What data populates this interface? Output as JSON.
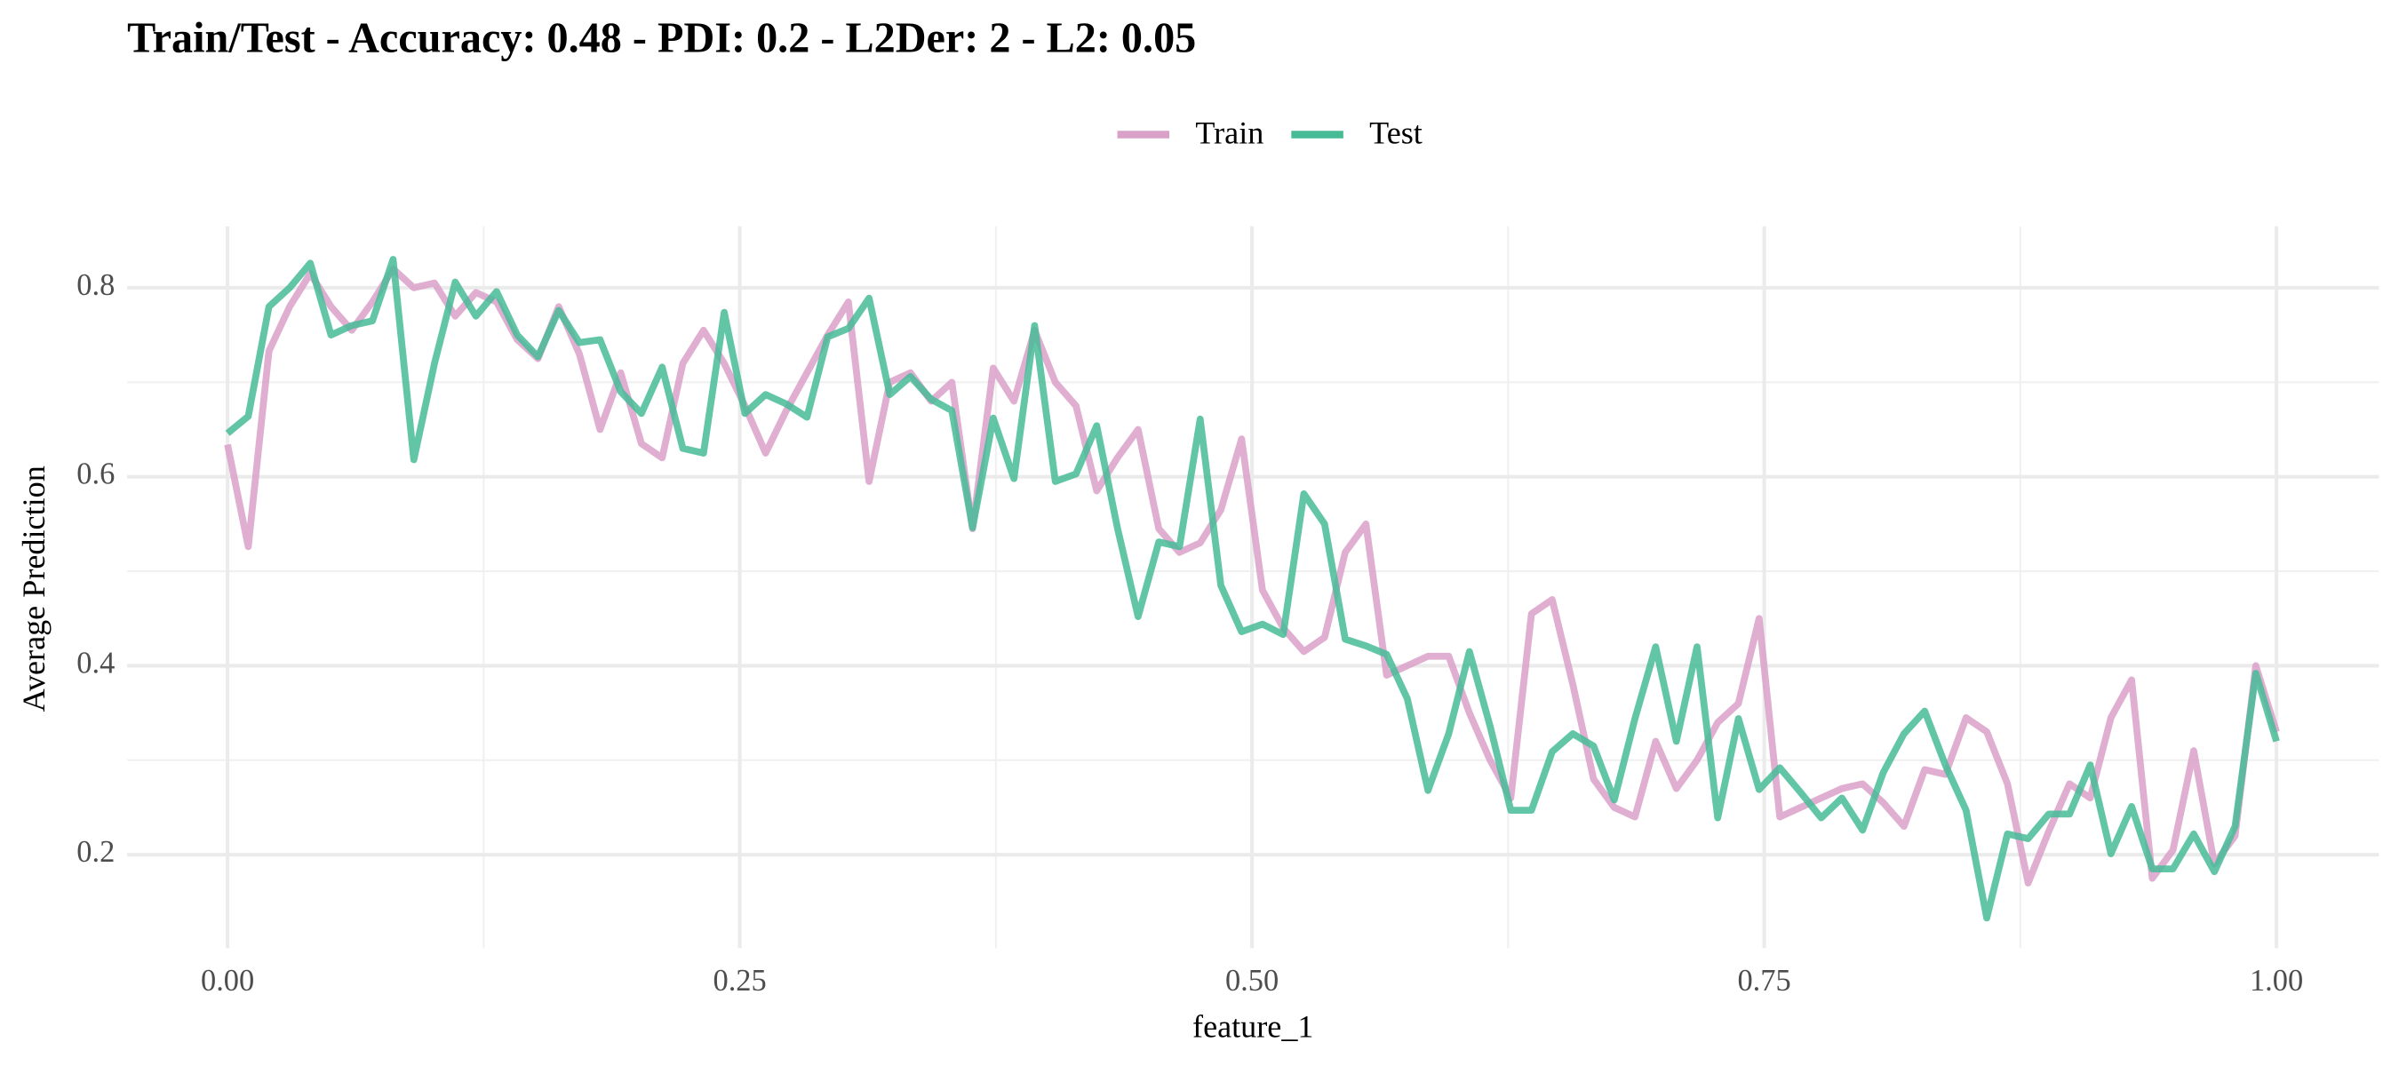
{
  "chart_data": {
    "type": "line",
    "title": "Train/Test - Accuracy: 0.48 - PDI: 0.2 - L2Der: 2 - L2: 0.05",
    "x_label": "feature_1",
    "y_label": "Average Prediction",
    "legend_position": "top",
    "grid": true,
    "minor_grid": true,
    "xlim": [
      -0.049,
      1.05
    ],
    "ylim": [
      0.101,
      0.865
    ],
    "xticks": [
      {
        "value": 0,
        "label": "0.00"
      },
      {
        "value": 0.25,
        "label": "0.25"
      },
      {
        "value": 0.5,
        "label": "0.50"
      },
      {
        "value": 0.75,
        "label": "0.75"
      },
      {
        "value": 1,
        "label": "1.00"
      }
    ],
    "yticks": [
      0.2,
      0.4,
      0.6,
      0.8
    ],
    "x": [
      0,
      0.0101,
      0.0202,
      0.0303,
      0.0404,
      0.0505,
      0.0606,
      0.0707,
      0.0808,
      0.0909,
      0.101,
      0.1111,
      0.1212,
      0.1313,
      0.1414,
      0.1515,
      0.1616,
      0.1717,
      0.1818,
      0.1919,
      0.202,
      0.2121,
      0.2222,
      0.2323,
      0.2424,
      0.2525,
      0.2626,
      0.2727,
      0.2828,
      0.2929,
      0.303,
      0.3131,
      0.3232,
      0.3333,
      0.3434,
      0.3535,
      0.3636,
      0.3737,
      0.3838,
      0.3939,
      0.404,
      0.4141,
      0.4242,
      0.4343,
      0.4444,
      0.4545,
      0.4646,
      0.4747,
      0.4848,
      0.4949,
      0.5051,
      0.5152,
      0.5253,
      0.5354,
      0.5455,
      0.5556,
      0.5657,
      0.5758,
      0.5859,
      0.596,
      0.6061,
      0.6162,
      0.6263,
      0.6364,
      0.6465,
      0.6566,
      0.6667,
      0.6768,
      0.6869,
      0.697,
      0.7071,
      0.7172,
      0.7273,
      0.7374,
      0.7475,
      0.7576,
      0.7677,
      0.7778,
      0.7879,
      0.798,
      0.8081,
      0.8182,
      0.8283,
      0.8384,
      0.8485,
      0.8586,
      0.8687,
      0.8788,
      0.8889,
      0.899,
      0.9091,
      0.9192,
      0.9293,
      0.9394,
      0.9495,
      0.9596,
      0.9697,
      0.9798,
      0.9899,
      1
    ],
    "series": [
      {
        "name": "Train",
        "color": "#d9a0c8",
        "values": [
          0.634,
          0.526,
          0.733,
          0.78,
          0.815,
          0.78,
          0.755,
          0.785,
          0.82,
          0.8,
          0.805,
          0.77,
          0.795,
          0.785,
          0.745,
          0.725,
          0.78,
          0.73,
          0.65,
          0.71,
          0.635,
          0.62,
          0.72,
          0.755,
          0.72,
          0.675,
          0.625,
          0.67,
          0.71,
          0.75,
          0.785,
          0.595,
          0.7,
          0.71,
          0.68,
          0.7,
          0.545,
          0.715,
          0.68,
          0.755,
          0.7,
          0.675,
          0.585,
          0.62,
          0.65,
          0.545,
          0.52,
          0.53,
          0.565,
          0.64,
          0.48,
          0.44,
          0.415,
          0.43,
          0.52,
          0.55,
          0.39,
          0.4,
          0.41,
          0.41,
          0.35,
          0.3,
          0.26,
          0.455,
          0.47,
          0.38,
          0.28,
          0.25,
          0.24,
          0.32,
          0.27,
          0.3,
          0.34,
          0.36,
          0.45,
          0.24,
          0.25,
          0.26,
          0.27,
          0.275,
          0.255,
          0.23,
          0.29,
          0.285,
          0.345,
          0.33,
          0.275,
          0.17,
          0.225,
          0.275,
          0.26,
          0.345,
          0.385,
          0.175,
          0.205,
          0.31,
          0.19,
          0.22,
          0.4,
          0.33
        ]
      },
      {
        "name": "Test",
        "color": "#46bb96",
        "values": [
          0.646,
          0.664,
          0.78,
          0.8,
          0.826,
          0.75,
          0.76,
          0.765,
          0.83,
          0.618,
          0.72,
          0.806,
          0.77,
          0.796,
          0.75,
          0.727,
          0.776,
          0.742,
          0.745,
          0.69,
          0.667,
          0.716,
          0.63,
          0.625,
          0.774,
          0.667,
          0.687,
          0.677,
          0.663,
          0.748,
          0.757,
          0.789,
          0.687,
          0.706,
          0.682,
          0.67,
          0.546,
          0.662,
          0.598,
          0.76,
          0.595,
          0.603,
          0.654,
          0.546,
          0.452,
          0.531,
          0.526,
          0.661,
          0.485,
          0.436,
          0.444,
          0.433,
          0.582,
          0.55,
          0.428,
          0.421,
          0.412,
          0.365,
          0.268,
          0.328,
          0.415,
          0.336,
          0.247,
          0.247,
          0.309,
          0.328,
          0.315,
          0.258,
          0.344,
          0.42,
          0.32,
          0.42,
          0.239,
          0.344,
          0.269,
          0.292,
          0.266,
          0.239,
          0.26,
          0.226,
          0.287,
          0.328,
          0.352,
          0.295,
          0.247,
          0.133,
          0.222,
          0.217,
          0.243,
          0.243,
          0.295,
          0.201,
          0.251,
          0.185,
          0.185,
          0.222,
          0.182,
          0.23,
          0.392,
          0.32
        ]
      }
    ]
  }
}
